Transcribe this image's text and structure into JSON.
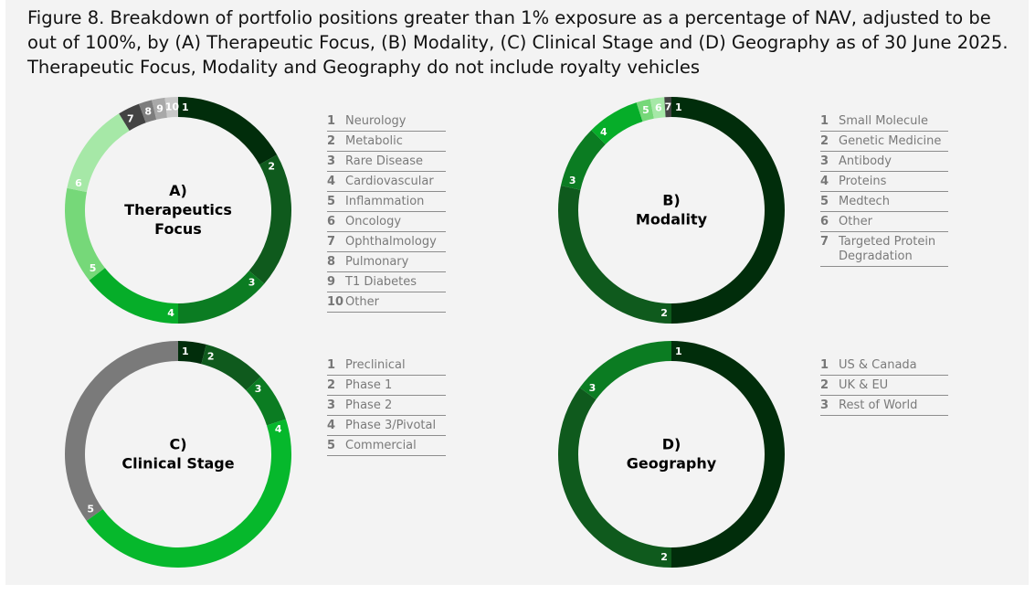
{
  "caption": "Figure 8. Breakdown of portfolio positions greater than 1% exposure as a percentage of NAV, adjusted to be out of 100%, by (A) Therapeutic Focus, (B) Modality, (C) Clinical Stage and (D) Geography as of 30 June 2025. Therapeutic Focus, Modality and Geography do not include royalty vehicles",
  "chart_data": [
    {
      "type": "pie",
      "title_lines": [
        "A)",
        "Therapeutics",
        "Focus"
      ],
      "categories": [
        "Neurology",
        "Metabolic",
        "Rare Disease",
        "Cardiovascular",
        "Inflammation",
        "Oncology",
        "Ophthalmology",
        "Pulmonary",
        "T1 Diabetes",
        "Other"
      ],
      "values": [
        13.5,
        15.5,
        11,
        11.5,
        11,
        10.5,
        2.5,
        1.5,
        1.5,
        1.5
      ],
      "colors": [
        "#012d0b",
        "#0f5a1d",
        "#0b7c22",
        "#06ad29",
        "#76d879",
        "#a6e8a7",
        "#434343",
        "#7d7d7d",
        "#a8a8a8",
        "#c8c8c8"
      ]
    },
    {
      "type": "pie",
      "title_lines": [
        "B)",
        "Modality"
      ],
      "categories": [
        "Small Molecule",
        "Genetic Medicine",
        "Antibody",
        "Proteins",
        "Medtech",
        "Other",
        "Targeted Protein Degradation"
      ],
      "values": [
        50,
        28.5,
        9,
        7.5,
        2,
        2,
        1
      ],
      "colors": [
        "#012d0b",
        "#0f5a1d",
        "#0b7c22",
        "#06ad29",
        "#76d879",
        "#a6e8a7",
        "#434343"
      ]
    },
    {
      "type": "pie",
      "title_lines": [
        "C)",
        "Clinical Stage"
      ],
      "categories": [
        "Preclinical",
        "Phase 1",
        "Phase 2",
        "Phase 3/Pivotal",
        "Commercial"
      ],
      "values": [
        4,
        9,
        7,
        45,
        35
      ],
      "colors": [
        "#012d0b",
        "#0f5a1d",
        "#0b7c22",
        "#06b82c",
        "#7a7a7a"
      ]
    },
    {
      "type": "pie",
      "title_lines": [
        "D)",
        "Geography"
      ],
      "categories": [
        "US & Canada",
        "UK & EU",
        "Rest of World"
      ],
      "values": [
        50,
        35,
        15
      ],
      "colors": [
        "#012d0b",
        "#0f5a1d",
        "#0b7c22"
      ]
    }
  ]
}
